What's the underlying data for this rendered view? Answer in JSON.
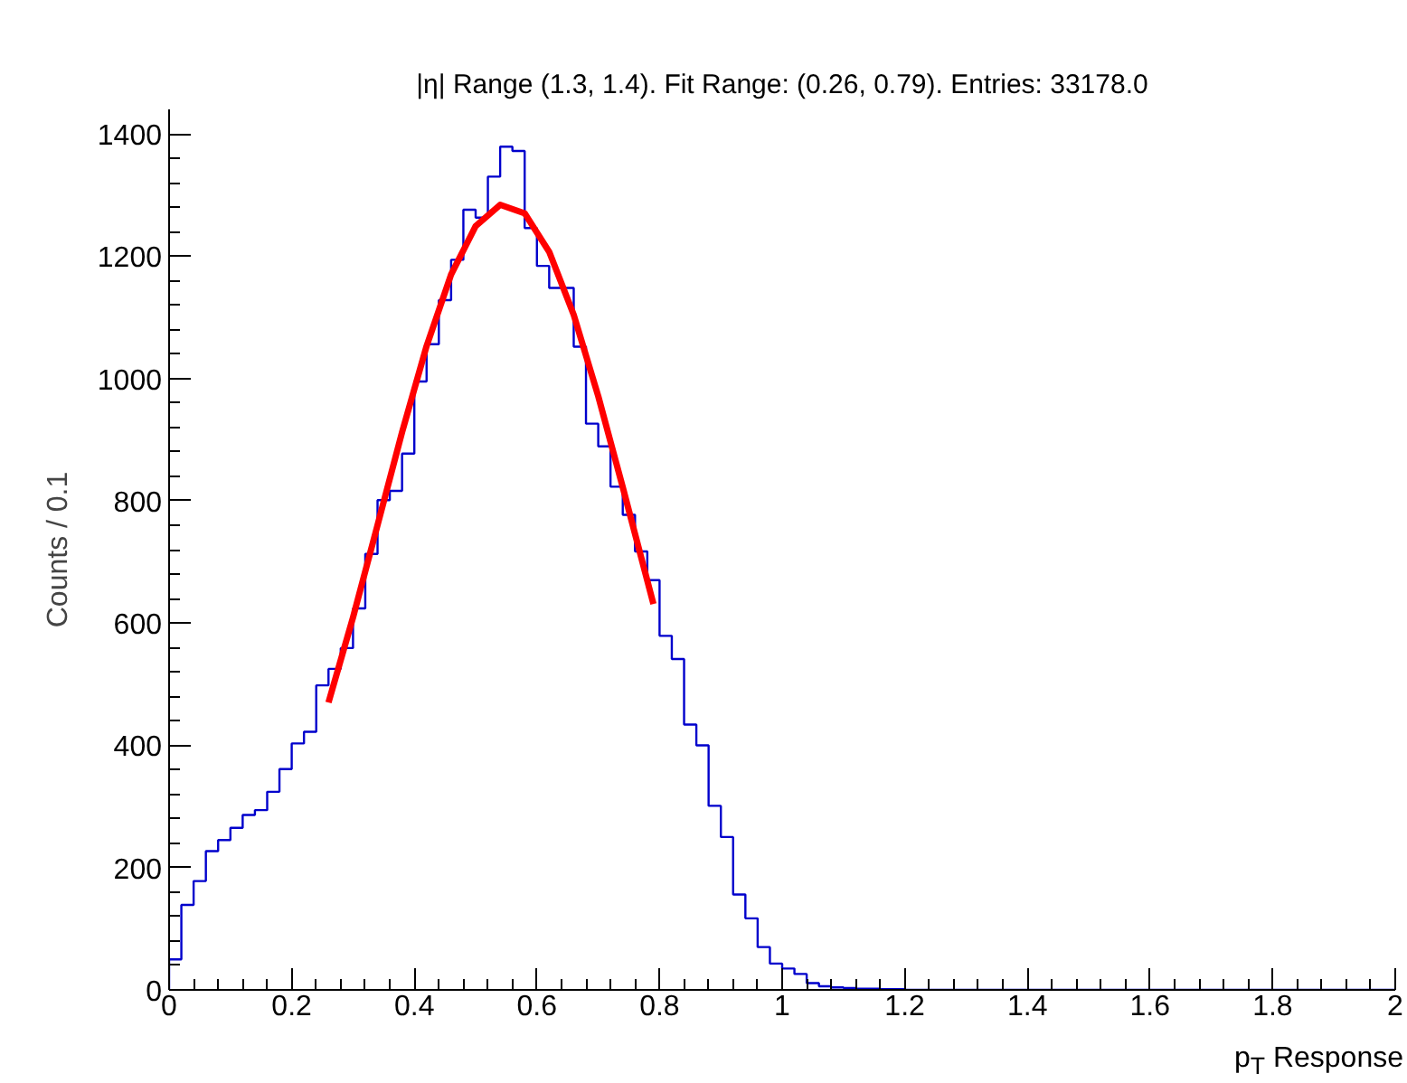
{
  "chart_data": {
    "type": "histogram",
    "title": "|η| Range (1.3, 1.4). Fit Range: (0.26, 0.79). Entries: 33178.0",
    "xlabel": "p$_{T}$ Response",
    "ylabel": "Counts / 0.1",
    "bins": [
      0,
      0.02,
      0.04,
      0.06,
      0.08,
      0.1,
      0.12,
      0.14,
      0.16,
      0.18,
      0.2,
      0.22,
      0.24,
      0.26,
      0.28,
      0.3,
      0.32,
      0.34,
      0.36,
      0.38,
      0.4,
      0.42,
      0.44,
      0.46,
      0.48,
      0.5,
      0.52,
      0.54,
      0.56,
      0.58,
      0.6,
      0.62,
      0.64,
      0.66,
      0.68,
      0.7,
      0.72,
      0.74,
      0.76,
      0.78,
      0.8,
      0.82,
      0.84,
      0.86,
      0.88,
      0.9,
      0.92,
      0.94,
      0.96,
      0.98,
      1,
      1.02,
      1.04,
      1.06,
      1.08,
      1.1,
      1.12,
      1.14,
      1.16,
      1.18,
      1.2,
      1.22,
      1.24,
      1.26,
      1.28,
      1.3,
      1.32,
      1.34,
      1.36,
      1.38,
      1.4,
      1.42,
      1.44,
      1.46,
      1.48,
      1.5,
      1.52,
      1.54,
      1.56,
      1.58,
      1.6,
      1.62,
      1.64,
      1.66,
      1.68,
      1.7,
      1.72,
      1.74,
      1.76,
      1.78,
      1.8,
      1.82,
      1.84,
      1.86,
      1.88,
      1.9,
      1.92,
      1.94,
      1.96,
      1.98,
      2
    ],
    "values": [
      50,
      139,
      178,
      227,
      245,
      265,
      286,
      294,
      324,
      361,
      403,
      422,
      498,
      525,
      559,
      624,
      713,
      801,
      816,
      877,
      995,
      1056,
      1128,
      1194,
      1276,
      1263,
      1330,
      1379,
      1372,
      1246,
      1184,
      1148,
      1148,
      1052,
      926,
      889,
      823,
      777,
      717,
      670,
      579,
      541,
      434,
      400,
      301,
      250,
      156,
      117,
      70,
      43,
      35,
      26,
      11,
      6,
      4,
      3,
      2,
      2,
      1,
      1,
      0,
      0,
      0,
      0,
      0,
      0,
      0,
      0,
      0,
      0,
      0,
      0,
      0,
      0,
      0,
      0,
      0,
      0,
      0,
      0,
      0,
      0,
      0,
      0,
      0,
      0,
      0,
      0,
      0,
      0,
      0,
      0,
      0,
      0,
      0,
      0,
      0,
      0,
      0,
      0
    ],
    "color": "#0000cc",
    "series": [
      {
        "type": "line",
        "color": "#ff0000",
        "x": [
          0.26,
          0.3,
          0.34,
          0.38,
          0.42,
          0.46,
          0.5,
          0.54,
          0.58,
          0.62,
          0.66,
          0.7,
          0.74,
          0.79
        ],
        "values": [
          470,
          609,
          760,
          912,
          1053,
          1170,
          1249,
          1284,
          1270,
          1207,
          1104,
          971,
          822,
          631
        ]
      }
    ],
    "xlim": [
      0,
      2
    ],
    "ylim": [
      0,
      1440
    ],
    "xticks": [
      0,
      0.2,
      0.4,
      0.6,
      0.8,
      1,
      1.2,
      1.4,
      1.6,
      1.8,
      2
    ],
    "yticks": [
      0,
      200,
      400,
      600,
      800,
      1000,
      1200,
      1400
    ],
    "grid": false
  }
}
